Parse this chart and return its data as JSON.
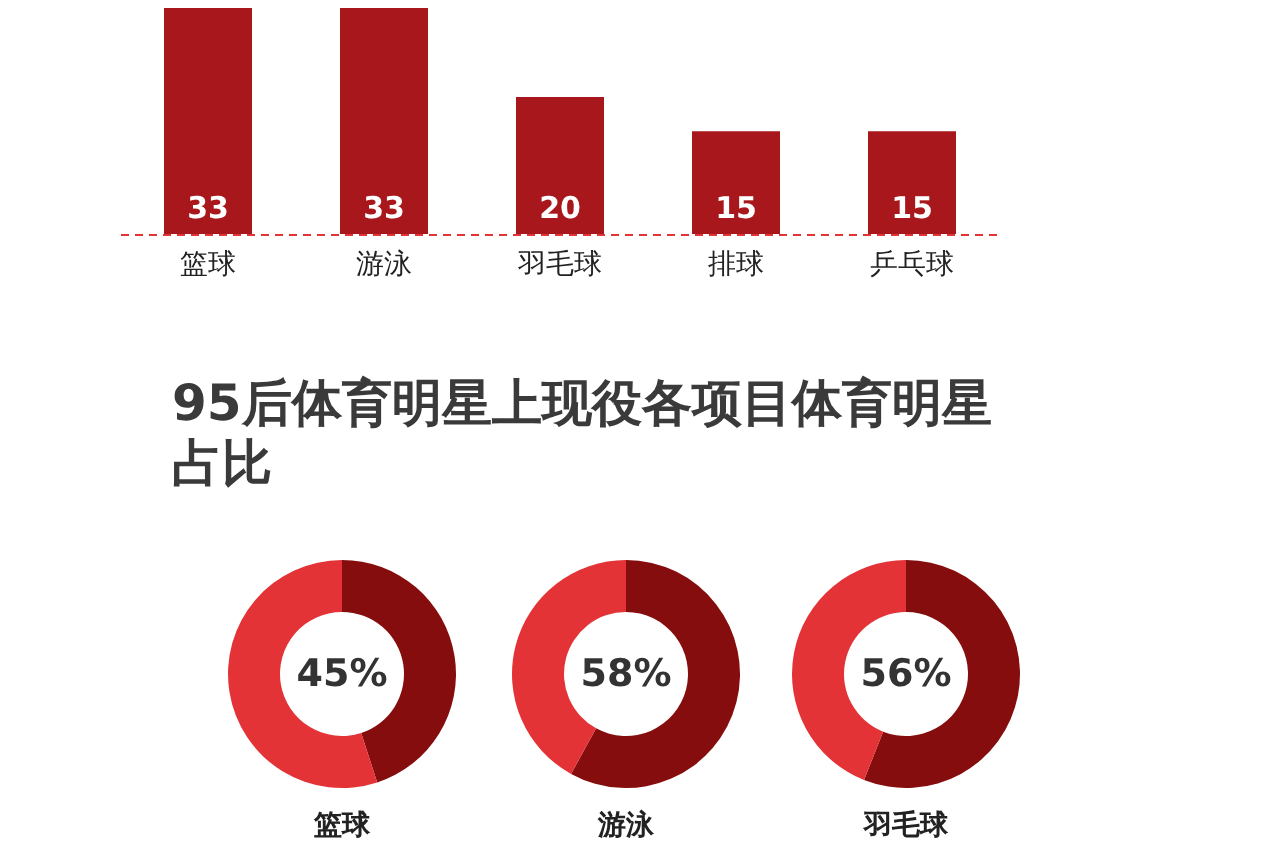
{
  "chart_data": [
    {
      "type": "bar",
      "categories": [
        "篮球",
        "游泳",
        "羽毛球",
        "排球",
        "乒乓球"
      ],
      "values": [
        33,
        33,
        20,
        15,
        15
      ],
      "color": "#a8171b",
      "data_labels": true
    },
    {
      "type": "other",
      "title": "95后体育明星上现役各项目体育明星占比"
    },
    {
      "type": "donut",
      "title": "篮球",
      "categories": [
        null,
        null
      ],
      "values": [
        45,
        55
      ],
      "colors": [
        "#860d0d",
        "#e43336"
      ],
      "annotations": [
        "45%"
      ]
    },
    {
      "type": "donut",
      "title": "游泳",
      "categories": [
        null,
        null
      ],
      "values": [
        58,
        42
      ],
      "colors": [
        "#860d0d",
        "#e43336"
      ],
      "annotations": [
        "58%"
      ]
    },
    {
      "type": "donut",
      "title": "羽毛球",
      "categories": [
        null,
        null
      ],
      "values": [
        56,
        44
      ],
      "colors": [
        "#860d0d",
        "#e43336"
      ],
      "annotations": [
        "56%"
      ]
    }
  ]
}
